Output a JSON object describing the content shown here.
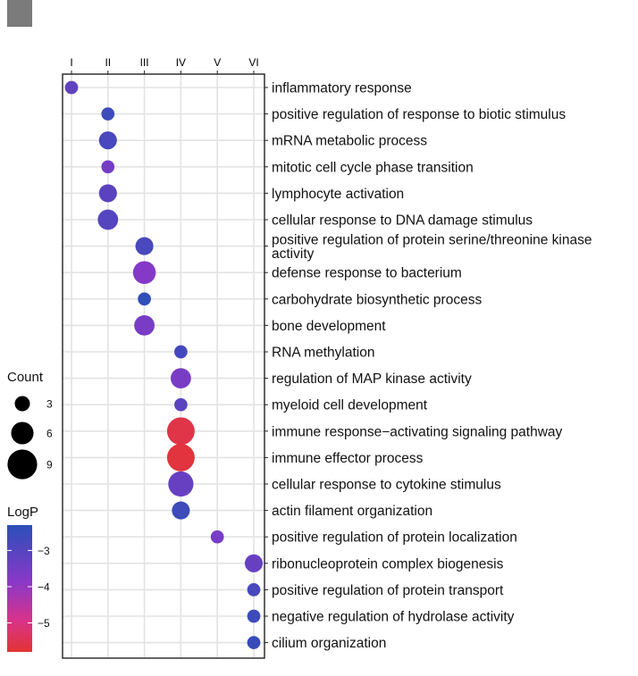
{
  "colors": {
    "low": "#2b4fb8",
    "mid": "#8a38c8",
    "high": "#e23434",
    "grid": "#e3e3e3",
    "swatch": "#7b7b7b"
  },
  "chart_data": {
    "type": "scatter",
    "x_categories": [
      "I",
      "II",
      "III",
      "IV",
      "V",
      "VI"
    ],
    "y_categories": [
      "inflammatory response",
      "positive regulation of response to biotic stimulus",
      "mRNA metabolic process",
      "mitotic cell cycle phase transition",
      "lymphocyte activation",
      "cellular response to DNA damage stimulus",
      "positive regulation of protein serine/threonine kinase activity",
      "defense response to bacterium",
      "carbohydrate biosynthetic process",
      "bone development",
      "RNA methylation",
      "regulation of MAP kinase activity",
      "myeloid cell development",
      "immune response−activating signaling pathway",
      "immune effector process",
      "cellular response to cytokine stimulus",
      "actin filament organization",
      "positive regulation of protein localization",
      "ribonucleoprotein complex biogenesis",
      "positive regulation of protein transport",
      "negative regulation of hydrolase activity",
      "cilium organization"
    ],
    "points": [
      {
        "cluster": "I",
        "term": "inflammatory response",
        "count": 4,
        "logp": -3.2
      },
      {
        "cluster": "II",
        "term": "positive regulation of response to biotic stimulus",
        "count": 4,
        "logp": -2.6
      },
      {
        "cluster": "II",
        "term": "mRNA metabolic process",
        "count": 6,
        "logp": -2.8
      },
      {
        "cluster": "II",
        "term": "mitotic cell cycle phase transition",
        "count": 4,
        "logp": -3.5
      },
      {
        "cluster": "II",
        "term": "lymphocyte activation",
        "count": 6,
        "logp": -3.1
      },
      {
        "cluster": "II",
        "term": "cellular response to DNA damage stimulus",
        "count": 7,
        "logp": -3.0
      },
      {
        "cluster": "III",
        "term": "positive regulation of protein serine/threonine kinase activity",
        "count": 6,
        "logp": -2.8
      },
      {
        "cluster": "III",
        "term": "defense response to bacterium",
        "count": 8,
        "logp": -3.8
      },
      {
        "cluster": "III",
        "term": "carbohydrate biosynthetic process",
        "count": 4,
        "logp": -2.4
      },
      {
        "cluster": "III",
        "term": "bone development",
        "count": 7,
        "logp": -3.6
      },
      {
        "cluster": "IV",
        "term": "RNA methylation",
        "count": 4,
        "logp": -2.7
      },
      {
        "cluster": "IV",
        "term": "regulation of MAP kinase activity",
        "count": 7,
        "logp": -3.6
      },
      {
        "cluster": "IV",
        "term": "myeloid cell development",
        "count": 4,
        "logp": -3.1
      },
      {
        "cluster": "IV",
        "term": "immune response−activating signaling pathway",
        "count": 10,
        "logp": -5.6
      },
      {
        "cluster": "IV",
        "term": "immune effector process",
        "count": 10,
        "logp": -5.7
      },
      {
        "cluster": "IV",
        "term": "cellular response to cytokine stimulus",
        "count": 9,
        "logp": -3.3
      },
      {
        "cluster": "IV",
        "term": "actin filament organization",
        "count": 6,
        "logp": -2.6
      },
      {
        "cluster": "V",
        "term": "positive regulation of protein localization",
        "count": 4,
        "logp": -3.6
      },
      {
        "cluster": "VI",
        "term": "ribonucleoprotein complex biogenesis",
        "count": 6,
        "logp": -3.3
      },
      {
        "cluster": "VI",
        "term": "positive regulation of protein transport",
        "count": 4,
        "logp": -2.8
      },
      {
        "cluster": "VI",
        "term": "negative regulation of hydrolase activity",
        "count": 4,
        "logp": -2.6
      },
      {
        "cluster": "VI",
        "term": "cilium organization",
        "count": 4,
        "logp": -2.5
      }
    ],
    "size_legend": {
      "title": "Count",
      "values": [
        3,
        6,
        9
      ],
      "labels": [
        "3",
        "6",
        "9"
      ]
    },
    "color_legend": {
      "title": "LogP",
      "range": [
        -2.3,
        -5.8
      ],
      "ticks": [
        -3,
        -4,
        -5
      ],
      "tick_labels": [
        "−3",
        "−4",
        "−5"
      ]
    },
    "grid": true,
    "xlabel": "",
    "ylabel": ""
  }
}
